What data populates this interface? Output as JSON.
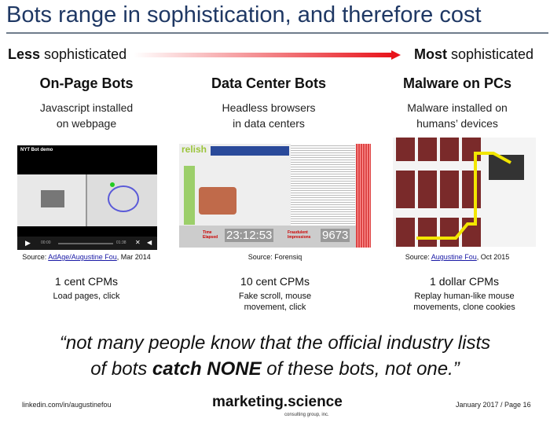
{
  "title": "Bots range in sophistication, and therefore cost",
  "scale": {
    "left_bold": "Less",
    "left_rest": " sophisticated",
    "right_bold": "Most",
    "right_rest": " sophisticated",
    "arrow_color": "#e8141b"
  },
  "columns": [
    {
      "heading": "On-Page Bots",
      "desc": [
        "Javascript installed",
        "on webpage"
      ],
      "image_label": "NYT Bot demo",
      "video_time_start": "00:00",
      "video_time_end": "01:38",
      "source_prefix": "Source: ",
      "source_link": "AdAge/Augustine Fou",
      "source_suffix": ", Mar 2014",
      "cpm": "1 cent CPMs",
      "cpm_desc": [
        "Load pages, click"
      ]
    },
    {
      "heading": "Data Center Bots",
      "desc": [
        "Headless browsers",
        "in data centers"
      ],
      "image_brand": "relish",
      "time_label": "Time Elapsed",
      "time_value": "23:12:53",
      "impr_label": "Fraudulent Impressions",
      "impr_value": "9673",
      "source_prefix": "Source: Forensiq",
      "source_link": "",
      "source_suffix": "",
      "cpm": "10 cent CPMs",
      "cpm_desc": [
        "Fake scroll, mouse",
        "movement, click"
      ]
    },
    {
      "heading": "Malware on PCs",
      "desc": [
        "Malware installed on",
        "humans’ devices"
      ],
      "source_prefix": "Source: ",
      "source_link": "Augustine Fou",
      "source_suffix": ", Oct 2015",
      "cpm": "1 dollar CPMs",
      "cpm_desc": [
        "Replay human-like mouse",
        "movements, clone cookies"
      ]
    }
  ],
  "quote": {
    "line1": "“not many people know that the official industry lists",
    "line2_pre": "of bots ",
    "line2_bold": "catch NONE",
    "line2_post": " of these bots, not one.”"
  },
  "footer": {
    "left": "linkedin.com/in/augustinefou",
    "logo": "marketing.science",
    "logo_sub": "consulting group, inc.",
    "right": "January 2017 / Page 16"
  }
}
